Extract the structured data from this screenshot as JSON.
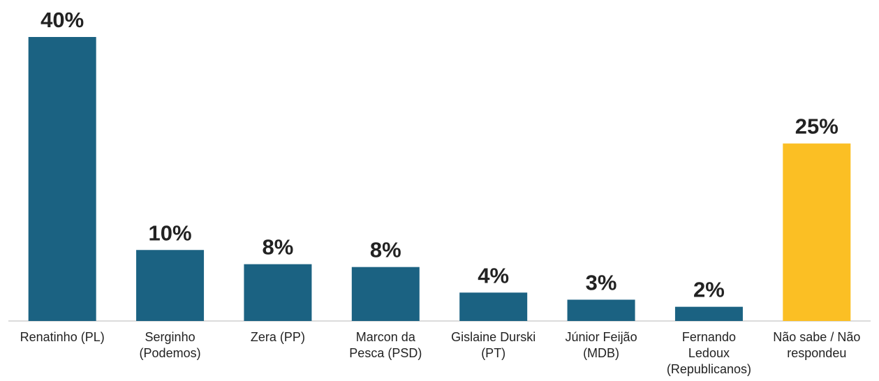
{
  "chart_data": {
    "type": "bar",
    "categories": [
      "Renatinho (PL)",
      "Serginho\n(Podemos)",
      "Zera (PP)",
      "Marcon da\nPesca (PSD)",
      "Gislaine Durski\n(PT)",
      "Júnior Feijão\n(MDB)",
      "Fernando\nLedoux\n(Republicanos)",
      "Não sabe / Não\nrespondeu"
    ],
    "values": [
      40,
      10,
      8,
      7.6,
      4,
      3,
      2,
      25
    ],
    "value_labels": [
      "40%",
      "10%",
      "8%",
      "8%",
      "4%",
      "3%",
      "2%",
      "25%"
    ],
    "colors": [
      "#1b6282",
      "#1b6282",
      "#1b6282",
      "#1b6282",
      "#1b6282",
      "#1b6282",
      "#1b6282",
      "#fbbf24"
    ]
  }
}
